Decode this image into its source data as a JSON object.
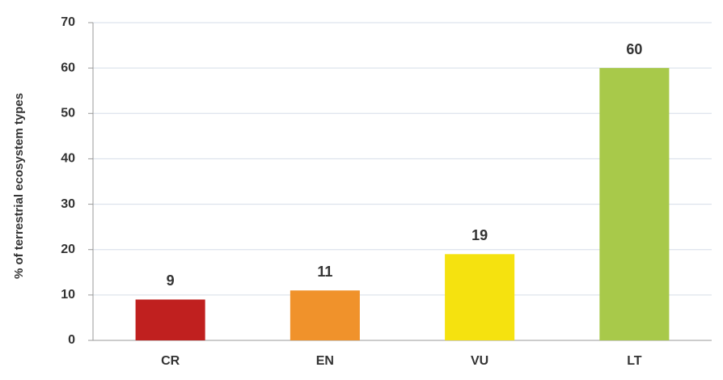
{
  "chart_data": {
    "type": "bar",
    "y_label": "% of terrestrial ecosystem types",
    "categories": [
      "CR",
      "EN",
      "VU",
      "LT"
    ],
    "values": [
      9,
      11,
      19,
      60
    ],
    "colors": [
      "#c0201f",
      "#f0922b",
      "#f5e20f",
      "#a8c94a"
    ],
    "ylim": [
      0,
      70
    ],
    "yticks": [
      0,
      10,
      20,
      30,
      40,
      50,
      60,
      70
    ],
    "grid": true
  }
}
